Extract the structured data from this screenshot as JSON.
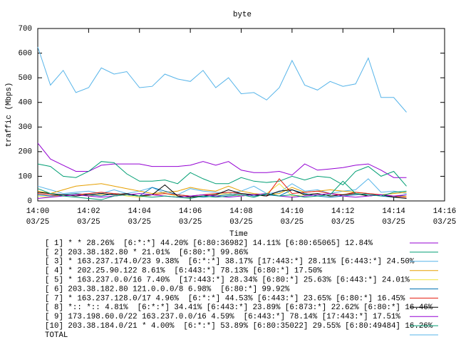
{
  "chart_data": {
    "type": "line",
    "title": "byte",
    "xlabel": "Time",
    "ylabel": "traffic (Mbps)",
    "x": [
      0,
      0.5,
      1,
      1.5,
      2,
      2.5,
      3,
      3.5,
      4,
      4.5,
      5,
      5.5,
      6,
      6.5,
      7,
      7.5,
      8,
      8.5,
      9,
      9.5,
      10,
      10.5,
      11,
      11.5,
      12,
      12.5,
      13,
      13.5,
      14,
      14.5
    ],
    "xlim": [
      0,
      16
    ],
    "xticks": [
      {
        "value": 0,
        "label": "14:00\n03/25"
      },
      {
        "value": 2,
        "label": "14:02\n03/25"
      },
      {
        "value": 4,
        "label": "14:04\n03/25"
      },
      {
        "value": 6,
        "label": "14:06\n03/25"
      },
      {
        "value": 8,
        "label": "14:08\n03/25"
      },
      {
        "value": 10,
        "label": "14:10\n03/25"
      },
      {
        "value": 12,
        "label": "14:12\n03/25"
      },
      {
        "value": 14,
        "label": "14:14\n03/25"
      },
      {
        "value": 16,
        "label": "14:16\n03/25"
      }
    ],
    "ylim": [
      0,
      700
    ],
    "yticks": [
      0,
      100,
      200,
      300,
      400,
      500,
      600,
      700
    ],
    "grid": false,
    "series": [
      {
        "name": "[ 1] * * 28.26%  [6:*:*] 44.20% [6:80:36982] 14.11% [6:80:65065] 12.84%",
        "color": "#9400d3",
        "values": [
          235,
          170,
          145,
          120,
          120,
          145,
          150,
          150,
          150,
          140,
          140,
          140,
          145,
          160,
          145,
          160,
          125,
          115,
          115,
          120,
          105,
          150,
          125,
          130,
          135,
          145,
          150,
          125,
          95,
          95
        ]
      },
      {
        "name": "[ 2] 203.38.182.80 * 21.01%  [6:80:*] 99.86%",
        "color": "#009e73",
        "values": [
          150,
          140,
          100,
          95,
          120,
          160,
          155,
          110,
          80,
          80,
          85,
          70,
          115,
          90,
          70,
          70,
          95,
          80,
          75,
          80,
          100,
          85,
          100,
          95,
          65,
          120,
          140,
          100,
          120,
          60
        ]
      },
      {
        "name": "[ 3] * 163.237.174.0/23 9.38%  [6:*:*] 38.17% [17:443:*] 28.11% [6:443:*] 24.50%",
        "color": "#56b4e9",
        "values": [
          60,
          45,
          30,
          35,
          40,
          30,
          45,
          30,
          40,
          55,
          30,
          25,
          50,
          40,
          35,
          30,
          40,
          60,
          30,
          35,
          70,
          40,
          45,
          30,
          40,
          45,
          90,
          35,
          40,
          30
        ]
      },
      {
        "name": "[ 4] * 202.25.90.122 8.61%  [6:443:*] 78.13% [6:80:*] 17.50%",
        "color": "#e69f00",
        "values": [
          40,
          30,
          45,
          60,
          65,
          70,
          60,
          50,
          40,
          30,
          35,
          40,
          55,
          45,
          40,
          60,
          40,
          30,
          25,
          30,
          55,
          35,
          40,
          45,
          40,
          35,
          30,
          25,
          30,
          35
        ]
      },
      {
        "name": "[ 5] * 163.237.0.0/16 7.40%  [17:443:*] 28.34% [6:80:*] 25.63% [6:443:*] 24.01%",
        "color": "#f0e442",
        "values": [
          20,
          15,
          25,
          30,
          20,
          25,
          30,
          20,
          15,
          25,
          30,
          20,
          15,
          20,
          25,
          30,
          20,
          25,
          30,
          70,
          20,
          25,
          30,
          20,
          25,
          30,
          20,
          25,
          15,
          20
        ]
      },
      {
        "name": "[ 6] 203.38.182.80 121.0.0.0/8 6.98%  [6:80:*] 99.92%",
        "color": "#0072b2",
        "values": [
          25,
          20,
          25,
          30,
          25,
          20,
          30,
          25,
          20,
          55,
          40,
          25,
          20,
          15,
          20,
          25,
          30,
          20,
          25,
          20,
          45,
          30,
          20,
          15,
          20,
          25,
          30,
          20,
          15,
          25
        ]
      },
      {
        "name": "[ 7] * 163.237.128.0/17 4.96%  [6:*:*] 44.53% [6:443:*] 23.65% [6:80:*] 16.45%",
        "color": "#e51e10",
        "values": [
          30,
          25,
          20,
          25,
          30,
          35,
          30,
          25,
          20,
          25,
          30,
          25,
          20,
          25,
          30,
          35,
          30,
          25,
          20,
          90,
          30,
          35,
          40,
          30,
          25,
          35,
          30,
          25,
          20,
          15
        ]
      },
      {
        "name": "[ 8] *:: *:: 4.81%  [6:*:*] 34.41% [6:443:*] 23.89% [6:873:*] 22.62% [6:80:*] 16.46%",
        "color": "#000000",
        "values": [
          35,
          30,
          25,
          20,
          25,
          30,
          25,
          30,
          20,
          25,
          65,
          20,
          15,
          20,
          25,
          45,
          30,
          25,
          20,
          40,
          45,
          25,
          30,
          20,
          25,
          30,
          20,
          25,
          15,
          10
        ]
      },
      {
        "name": "[ 9] 173.198.60.0/22 163.237.0.0/16 4.59%  [6:443:*] 78.14% [17:443:*] 17.51%",
        "color": "#9400d3",
        "values": [
          10,
          15,
          20,
          25,
          20,
          15,
          20,
          25,
          30,
          25,
          20,
          15,
          20,
          25,
          20,
          15,
          20,
          25,
          30,
          20,
          15,
          20,
          25,
          30,
          20,
          15,
          20,
          25,
          20,
          25
        ]
      },
      {
        "name": "[10] 203.38.184.0/21 * 4.00%  [6:*:*] 53.89% [6:80:35022] 29.55% [6:80:49484] 16.26%",
        "color": "#009e73",
        "values": [
          50,
          30,
          20,
          15,
          10,
          5,
          20,
          25,
          20,
          15,
          20,
          15,
          10,
          20,
          15,
          20,
          25,
          15,
          30,
          20,
          25,
          15,
          20,
          25,
          80,
          30,
          25,
          20,
          35,
          40
        ]
      },
      {
        "name": "TOTAL",
        "color": "#56b4e9",
        "values": [
          625,
          470,
          530,
          440,
          460,
          540,
          515,
          525,
          460,
          465,
          515,
          495,
          485,
          530,
          460,
          500,
          435,
          440,
          410,
          460,
          570,
          470,
          450,
          485,
          465,
          475,
          580,
          420,
          420,
          360
        ]
      }
    ]
  }
}
